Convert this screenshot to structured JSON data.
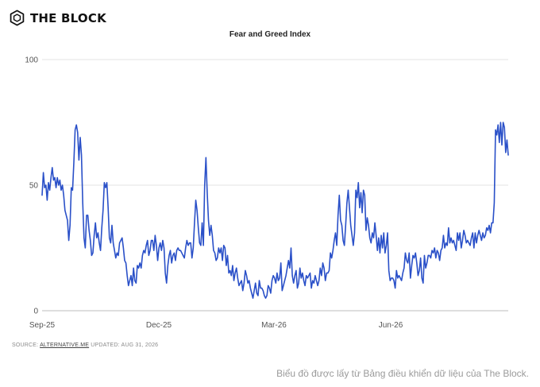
{
  "brand": {
    "name": "THE BLOCK",
    "icon": "cube-logo-icon"
  },
  "source": {
    "label": "SOURCE:",
    "link": "ALTERNATIVE.ME",
    "updated": "UPDATED: AUG 31, 2026"
  },
  "caption": "Biểu đồ được lấy từ Bảng điều khiển dữ liệu của The Block.",
  "colors": {
    "line": "#2a50c8",
    "grid": "#e3e3e3",
    "axis_text": "#555555"
  },
  "chart_data": {
    "type": "line",
    "title": "Fear and Greed Index",
    "xlabel": "",
    "ylabel": "",
    "ylim": [
      0,
      100
    ],
    "yticks": [
      0,
      50,
      100
    ],
    "xticks": [
      "Sep-25",
      "Dec-25",
      "Mar-26",
      "Jun-26"
    ],
    "grid": true,
    "series": [
      {
        "values": [
          46,
          55,
          49,
          50,
          44,
          51,
          48,
          53,
          57,
          52,
          53,
          49,
          53,
          50,
          52,
          48,
          50,
          46,
          40,
          38,
          36,
          28,
          34,
          49,
          48,
          59,
          72,
          74,
          71,
          60,
          69,
          62,
          43,
          29,
          25,
          38,
          38,
          32,
          28,
          22,
          23,
          30,
          35,
          29,
          31,
          27,
          24,
          33,
          40,
          51,
          49,
          51,
          41,
          29,
          27,
          34,
          27,
          24,
          21,
          23,
          22,
          27,
          28,
          29,
          25,
          20,
          19,
          14,
          10,
          12,
          14,
          10,
          17,
          12,
          11,
          18,
          17,
          19,
          17,
          22,
          24,
          23,
          26,
          28,
          22,
          24,
          28,
          28,
          24,
          30,
          26,
          20,
          25,
          27,
          24,
          28,
          25,
          15,
          11,
          18,
          22,
          24,
          19,
          22,
          23,
          20,
          24,
          25,
          24,
          24,
          23,
          22,
          21,
          25,
          28,
          26,
          27,
          27,
          21,
          25,
          35,
          44,
          40,
          33,
          27,
          26,
          35,
          26,
          50,
          61,
          47,
          36,
          30,
          34,
          30,
          24,
          23,
          20,
          21,
          25,
          23,
          25,
          20,
          26,
          25,
          18,
          22,
          15,
          16,
          14,
          18,
          12,
          15,
          17,
          13,
          10,
          11,
          12,
          8,
          11,
          16,
          14,
          11,
          12,
          9,
          7,
          5,
          8,
          11,
          7,
          6,
          12,
          9,
          9,
          8,
          6,
          5,
          6,
          10,
          9,
          7,
          12,
          14,
          13,
          11,
          15,
          12,
          13,
          19,
          8,
          10,
          12,
          14,
          17,
          20,
          17,
          25,
          14,
          11,
          14,
          16,
          9,
          11,
          17,
          13,
          15,
          12,
          10,
          14,
          13,
          14,
          15,
          9,
          12,
          11,
          14,
          12,
          10,
          12,
          17,
          14,
          19,
          17,
          12,
          15,
          15,
          16,
          23,
          21,
          24,
          28,
          31,
          26,
          38,
          46,
          36,
          34,
          28,
          26,
          34,
          43,
          48,
          41,
          34,
          30,
          26,
          31,
          48,
          45,
          51,
          41,
          47,
          39,
          48,
          46,
          32,
          37,
          34,
          29,
          27,
          31,
          29,
          35,
          30,
          24,
          29,
          23,
          30,
          25,
          31,
          23,
          26,
          31,
          16,
          12,
          13,
          13,
          12,
          9,
          16,
          13,
          14,
          13,
          12,
          15,
          17,
          23,
          20,
          19,
          23,
          13,
          18,
          22,
          21,
          23,
          19,
          14,
          16,
          21,
          13,
          11,
          22,
          17,
          19,
          22,
          22,
          21,
          24,
          23,
          25,
          21,
          24,
          23,
          20,
          24,
          25,
          30,
          25,
          27,
          26,
          33,
          27,
          29,
          27,
          28,
          26,
          24,
          31,
          28,
          31,
          25,
          28,
          32,
          30,
          27,
          28,
          27,
          26,
          29,
          31,
          25,
          31,
          27,
          30,
          32,
          30,
          28,
          31,
          29,
          30,
          33,
          32,
          34,
          31,
          35,
          35,
          43,
          72,
          70,
          74,
          67,
          75,
          66,
          75,
          73,
          63,
          68,
          62
        ]
      }
    ]
  }
}
